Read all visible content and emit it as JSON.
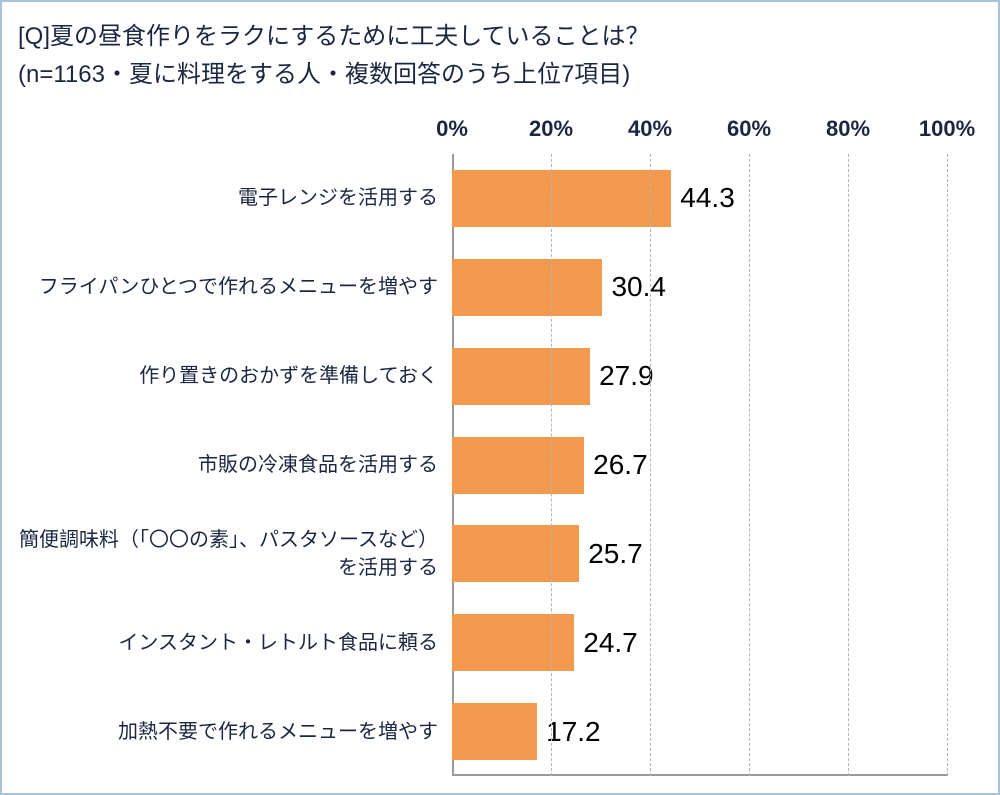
{
  "chart_data": {
    "type": "bar",
    "orientation": "horizontal",
    "title": "[Q]夏の昼食作りをラクにするために工夫していることは？",
    "subtitle": "(n=1163・夏に料理をする人・複数回答のうち上位7項目)",
    "categories": [
      "電子レンジを活用する",
      "フライパンひとつで作れるメニューを増やす",
      "作り置きのおかずを準備しておく",
      "市販の冷凍食品を活用する",
      "簡便調味料（「〇〇の素」、パスタソースなど）を活用する",
      "インスタント・レトルト食品に頼る",
      "加熱不要で作れるメニューを増やす"
    ],
    "values": [
      44.3,
      30.4,
      27.9,
      26.7,
      25.7,
      24.7,
      17.2
    ],
    "value_labels": [
      "44.3",
      "30.4",
      "27.9",
      "26.7",
      "25.7",
      "24.7",
      "17.2"
    ],
    "xlim": [
      0,
      100
    ],
    "x_ticks": [
      "0%",
      "20%",
      "40%",
      "60%",
      "80%",
      "100%"
    ],
    "grid": "dashed-vertical",
    "legend": "none",
    "colors": {
      "bar": "#F2994E",
      "title_text": "#1b2742",
      "axis_line": "#9b9b9b",
      "gridline": "#b3b3b3",
      "frame_border": "#a7c5d8",
      "value_text": "#000000"
    }
  }
}
